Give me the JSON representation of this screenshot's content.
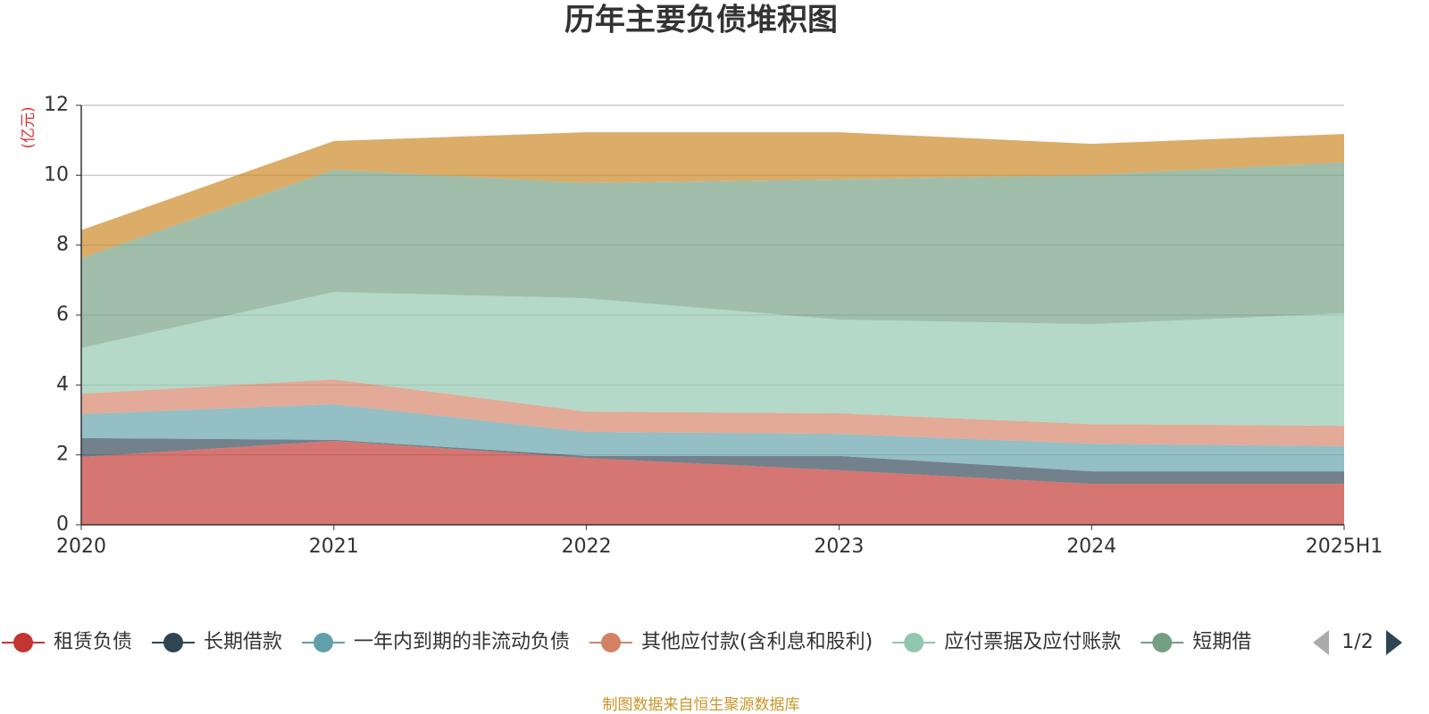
{
  "chart_data": {
    "type": "stacked_area",
    "title": "历年主要负债堆积图",
    "y_axis_label": "(亿元)",
    "source": "制图数据来自恒生聚源数据库",
    "legend_page": "1/2",
    "categories": [
      "2020",
      "2021",
      "2022",
      "2023",
      "2024",
      "2025H1"
    ],
    "ylim": [
      0,
      12
    ],
    "yticks": [
      0,
      2,
      4,
      6,
      8,
      10,
      12
    ],
    "grid": true,
    "series": [
      {
        "name": "租赁负债",
        "color": "#c23531",
        "values": [
          1.94,
          2.4,
          1.91,
          1.56,
          1.17,
          1.17
        ]
      },
      {
        "name": "长期借款",
        "color": "#2f4554",
        "values": [
          0.54,
          0.03,
          0.06,
          0.41,
          0.36,
          0.36
        ]
      },
      {
        "name": "一年内到期的非流动负债",
        "color": "#61a0a8",
        "values": [
          0.69,
          1.02,
          0.69,
          0.63,
          0.79,
          0.72
        ]
      },
      {
        "name": "其他应付款(含利息和股利)",
        "color": "#d48265",
        "values": [
          0.58,
          0.71,
          0.58,
          0.59,
          0.56,
          0.58
        ]
      },
      {
        "name": "应付票据及应付账款",
        "color": "#91c7ae",
        "values": [
          1.31,
          2.5,
          3.24,
          2.68,
          2.86,
          3.22
        ]
      },
      {
        "name": "短期借",
        "color": "#749f83",
        "values": [
          2.57,
          3.5,
          3.3,
          4.01,
          4.27,
          4.32
        ]
      },
      {
        "color": "#ca8622",
        "values": [
          0.8,
          0.82,
          1.45,
          1.35,
          0.89,
          0.81
        ]
      }
    ]
  }
}
